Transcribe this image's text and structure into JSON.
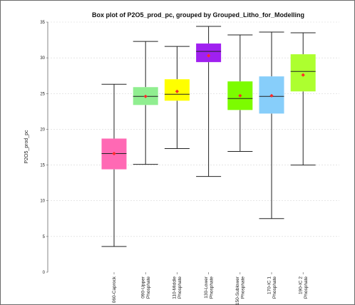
{
  "chart_data": {
    "type": "box",
    "title": "Box plot of P2O5_prod_pc, grouped by Grouped_Litho_for_Modelling",
    "ylabel": "P2O5_prod_pc",
    "xlabel": "",
    "ylim": [
      0,
      35
    ],
    "yticks": [
      "0",
      "5",
      "10",
      "15",
      "20",
      "25",
      "30",
      "35"
    ],
    "grid": true,
    "categories": [
      {
        "label": [
          "060-Caprock"
        ],
        "min": 3.6,
        "q1": 14.4,
        "median": 16.6,
        "q3": 18.7,
        "max": 26.3,
        "mean": 16.6,
        "color": "#ff69b4"
      },
      {
        "label": [
          "090-Upper",
          "Phosphate"
        ],
        "min": 15.1,
        "q1": 23.4,
        "median": 24.6,
        "q3": 25.9,
        "max": 32.3,
        "mean": 24.6,
        "color": "#90ee90"
      },
      {
        "label": [
          "110-Middle",
          "Phosphate"
        ],
        "min": 17.3,
        "q1": 24.0,
        "median": 24.9,
        "q3": 27.0,
        "max": 31.6,
        "mean": 25.3,
        "color": "#ffff00"
      },
      {
        "label": [
          "130-Lower",
          "Phosphate"
        ],
        "min": 13.4,
        "q1": 29.4,
        "median": 30.9,
        "q3": 32.0,
        "max": 34.4,
        "mean": 30.3,
        "color": "#a020f0"
      },
      {
        "label": [
          "150-Sublower",
          "Phosphate"
        ],
        "min": 16.9,
        "q1": 22.7,
        "median": 24.3,
        "q3": 26.7,
        "max": 33.2,
        "mean": 24.7,
        "color": "#7cfc00"
      },
      {
        "label": [
          "170-IC 1",
          "Phosphate"
        ],
        "min": 7.5,
        "q1": 22.2,
        "median": 24.6,
        "q3": 27.4,
        "max": 33.6,
        "mean": 24.7,
        "color": "#87cefa"
      },
      {
        "label": [
          "190-IC 2",
          "Phosphate"
        ],
        "min": 15.0,
        "q1": 25.3,
        "median": 28.1,
        "q3": 30.5,
        "max": 33.5,
        "mean": 27.6,
        "color": "#adff2f"
      }
    ],
    "mean_marker_color": "#ff2a2a"
  }
}
